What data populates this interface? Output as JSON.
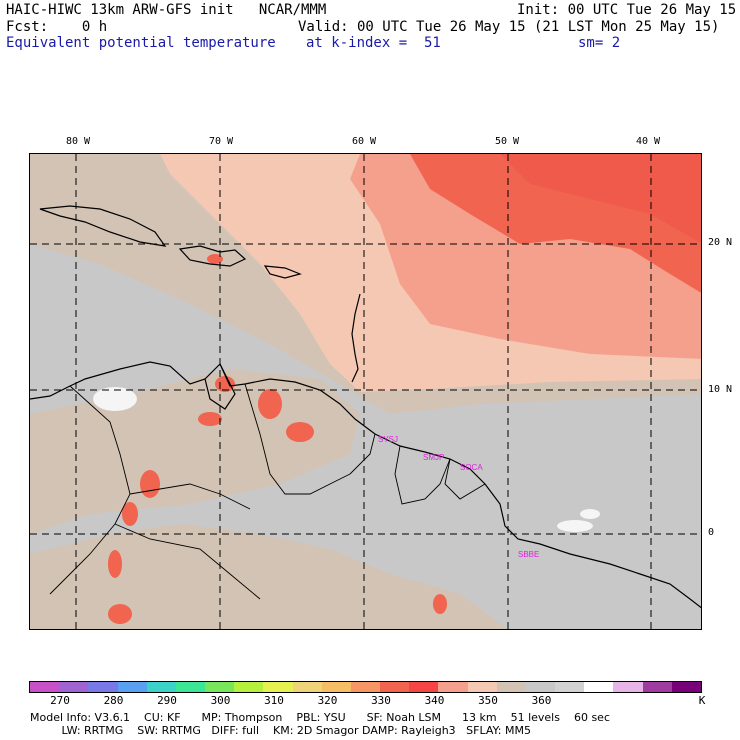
{
  "header": {
    "line1_left": "HAIC-HIWC 13km ARW-GFS init   NCAR/MMM",
    "line1_right": "Init: 00 UTC Tue 26 May 15",
    "line2_left": "Fcst:    0 h",
    "line2_right": "Valid: 00 UTC Tue 26 May 15 (21 LST Mon 25 May 15)",
    "line3_field": "Equivalent potential temperature",
    "line3_level": "at k-index =  51",
    "line3_smooth": "sm= 2"
  },
  "axes": {
    "lon_labels": [
      "80 W",
      "70 W",
      "60 W",
      "50 W",
      "40 W"
    ],
    "lat_labels": [
      "20 N",
      "10 N",
      "0"
    ]
  },
  "stations": [
    "SYSJ",
    "SMJP",
    "SOCA",
    "SBBE"
  ],
  "colorbar": {
    "labels": [
      "270",
      "280",
      "290",
      "300",
      "310",
      "320",
      "330",
      "340",
      "350",
      "360",
      "K"
    ],
    "colors": [
      "#c850c8",
      "#a064d2",
      "#7878e6",
      "#5aa0f0",
      "#3cd2c8",
      "#3ce696",
      "#78e65a",
      "#b4f03c",
      "#e6f050",
      "#f0d278",
      "#f5be64",
      "#f59664",
      "#f06450",
      "#f54646",
      "#f5a08c",
      "#f5c8b4",
      "#d2c3b4",
      "#c8c8c8",
      "#d2d2d2",
      "#ffffff",
      "#e6b4e6",
      "#a03ca0",
      "#780078"
    ]
  },
  "footer": {
    "line1": "Model Info: V3.6.1    CU: KF      MP: Thompson    PBL: YSU      SF: Noah LSM      13 km    51 levels    60 sec",
    "line2": "         LW: RRTMG    SW: RRTMG   DIFF: full    KM: 2D Smagor DAMP: Rayleigh3   SFLAY: MM5"
  }
}
